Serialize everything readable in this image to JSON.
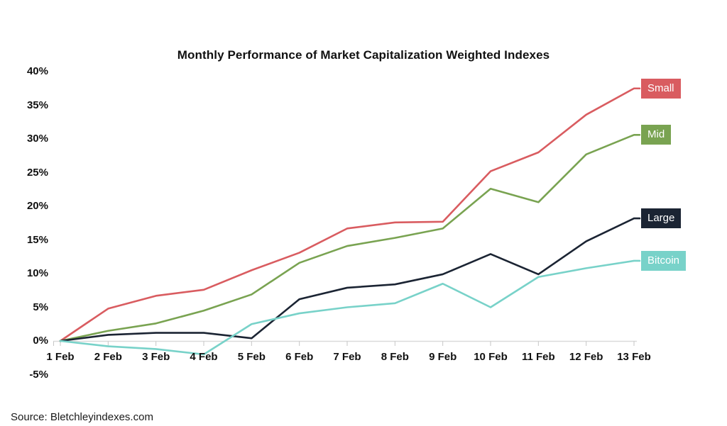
{
  "title": "Monthly Performance of Market Capitalization Weighted Indexes",
  "source": "Source: Bletchleyindexes.com",
  "colors": {
    "axis_line": "#D9D9D9",
    "tick": "#C6C6C6",
    "label_text": "#111111",
    "legend_text": "#FFFFFF"
  },
  "chart_data": {
    "type": "line",
    "title": "Monthly Performance of Market Capitalization Weighted Indexes",
    "xlabel": "",
    "ylabel": "",
    "categories": [
      "1 Feb",
      "2 Feb",
      "3 Feb",
      "4 Feb",
      "5 Feb",
      "6 Feb",
      "7 Feb",
      "8 Feb",
      "9 Feb",
      "10 Feb",
      "11 Feb",
      "12 Feb",
      "13 Feb"
    ],
    "series": [
      {
        "name": "Small",
        "color": "#D95C60",
        "values": [
          0,
          4.8,
          6.7,
          7.6,
          10.5,
          13.1,
          16.7,
          17.6,
          17.7,
          25.2,
          28.0,
          33.6,
          37.5
        ]
      },
      {
        "name": "Mid",
        "color": "#79A351",
        "values": [
          0,
          1.5,
          2.6,
          4.5,
          6.9,
          11.6,
          14.1,
          15.3,
          16.7,
          22.6,
          20.6,
          27.7,
          30.6
        ]
      },
      {
        "name": "Large",
        "color": "#1B2433",
        "values": [
          0,
          0.9,
          1.2,
          1.2,
          0.4,
          6.2,
          7.9,
          8.4,
          9.9,
          12.9,
          9.9,
          14.8,
          18.2
        ]
      },
      {
        "name": "Bitcoin",
        "color": "#78D2C9",
        "values": [
          0,
          -0.8,
          -1.2,
          -2.0,
          2.5,
          4.1,
          5.0,
          5.6,
          8.5,
          5.0,
          9.5,
          10.8,
          11.9
        ]
      }
    ],
    "ylim": [
      -5,
      40
    ],
    "ytick_values": [
      40,
      35,
      30,
      25,
      20,
      15,
      10,
      5,
      0,
      -5
    ],
    "ytick_labels": [
      "40%",
      "35%",
      "30%",
      "25%",
      "20%",
      "15%",
      "10%",
      "5%",
      "0%",
      "-5%"
    ],
    "grid": false,
    "legend_position": "right",
    "legend_entries": [
      "Small",
      "Mid",
      "Large",
      "Bitcoin"
    ]
  }
}
